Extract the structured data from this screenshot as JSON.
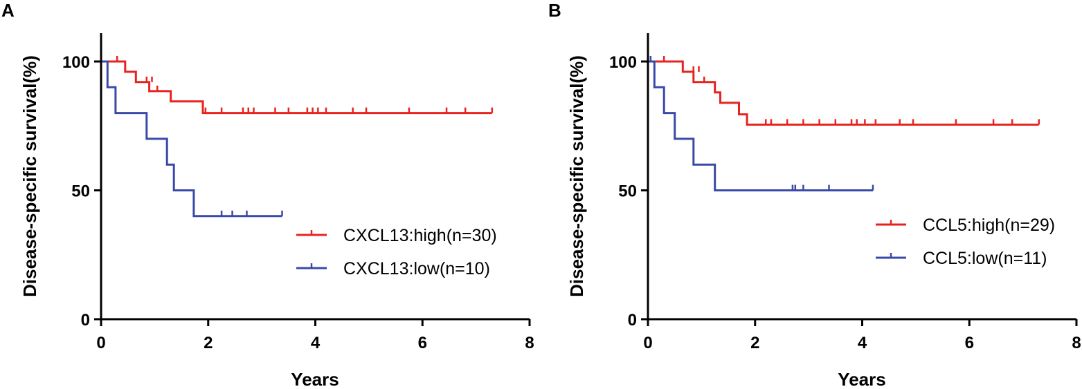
{
  "chart_data": [
    {
      "type": "line",
      "panel_label": "A",
      "xlabel": "Years",
      "ylabel": "Disease-specific survival(%)",
      "xlim": [
        0,
        8
      ],
      "ylim": [
        0,
        100
      ],
      "xticks": [
        0,
        2,
        4,
        6,
        8
      ],
      "yticks": [
        0,
        50,
        100
      ],
      "legend_position": "center-right",
      "series": [
        {
          "name": "CXCL13:high(n=30)",
          "color": "#e8231f",
          "steps": [
            [
              0,
              100
            ],
            [
              0.45,
              96
            ],
            [
              0.65,
              92
            ],
            [
              0.9,
              88.5
            ],
            [
              1.3,
              84.5
            ],
            [
              1.9,
              80
            ],
            [
              7.3,
              80
            ]
          ],
          "censored": [
            [
              0.3,
              100
            ],
            [
              0.85,
              92
            ],
            [
              0.95,
              92
            ],
            [
              1.05,
              88.5
            ],
            [
              1.95,
              80
            ],
            [
              2.25,
              80
            ],
            [
              2.65,
              80
            ],
            [
              2.75,
              80
            ],
            [
              2.85,
              80
            ],
            [
              3.25,
              80
            ],
            [
              3.5,
              80
            ],
            [
              3.85,
              80
            ],
            [
              3.95,
              80
            ],
            [
              4.05,
              80
            ],
            [
              4.2,
              80
            ],
            [
              4.7,
              80
            ],
            [
              4.95,
              80
            ],
            [
              5.75,
              80
            ],
            [
              6.45,
              80
            ],
            [
              6.8,
              80
            ],
            [
              7.3,
              80
            ]
          ]
        },
        {
          "name": "CXCL13:low(n=10)",
          "color": "#3949a8",
          "steps": [
            [
              0,
              100
            ],
            [
              0.12,
              90
            ],
            [
              0.27,
              80
            ],
            [
              0.85,
              70
            ],
            [
              1.23,
              60
            ],
            [
              1.36,
              50
            ],
            [
              1.73,
              40
            ],
            [
              3.38,
              40
            ]
          ],
          "censored": [
            [
              2.25,
              40
            ],
            [
              2.45,
              40
            ],
            [
              2.72,
              40
            ],
            [
              3.38,
              40
            ]
          ]
        }
      ]
    },
    {
      "type": "line",
      "panel_label": "B",
      "xlabel": "Years",
      "ylabel": "Disease-specific survival(%)",
      "xlim": [
        0,
        8
      ],
      "ylim": [
        0,
        100
      ],
      "xticks": [
        0,
        2,
        4,
        6,
        8
      ],
      "yticks": [
        0,
        50,
        100
      ],
      "legend_position": "center-right",
      "series": [
        {
          "name": "CCL5:high(n=29)",
          "color": "#e8231f",
          "steps": [
            [
              0,
              100
            ],
            [
              0.65,
              96
            ],
            [
              0.85,
              92
            ],
            [
              1.25,
              88
            ],
            [
              1.35,
              84
            ],
            [
              1.7,
              79.5
            ],
            [
              1.85,
              75.5
            ],
            [
              7.3,
              75.5
            ]
          ],
          "censored": [
            [
              0.3,
              100
            ],
            [
              0.85,
              96
            ],
            [
              0.95,
              96
            ],
            [
              1.05,
              92
            ],
            [
              2.2,
              75.5
            ],
            [
              2.3,
              75.5
            ],
            [
              2.6,
              75.5
            ],
            [
              2.9,
              75.5
            ],
            [
              3.2,
              75.5
            ],
            [
              3.5,
              75.5
            ],
            [
              3.8,
              75.5
            ],
            [
              3.9,
              75.5
            ],
            [
              4.05,
              75.5
            ],
            [
              4.25,
              75.5
            ],
            [
              4.7,
              75.5
            ],
            [
              4.95,
              75.5
            ],
            [
              5.75,
              75.5
            ],
            [
              6.45,
              75.5
            ],
            [
              6.8,
              75.5
            ],
            [
              7.3,
              75.5
            ]
          ]
        },
        {
          "name": "CCL5:low(n=11)",
          "color": "#3949a8",
          "steps": [
            [
              0,
              100
            ],
            [
              0.12,
              90
            ],
            [
              0.3,
              80
            ],
            [
              0.5,
              70
            ],
            [
              0.85,
              60
            ],
            [
              1.25,
              50
            ],
            [
              4.2,
              50
            ]
          ],
          "censored": [
            [
              0.05,
              100
            ],
            [
              2.7,
              50
            ],
            [
              2.75,
              50
            ],
            [
              2.9,
              50
            ],
            [
              3.38,
              50
            ],
            [
              4.2,
              50
            ]
          ]
        }
      ]
    }
  ]
}
